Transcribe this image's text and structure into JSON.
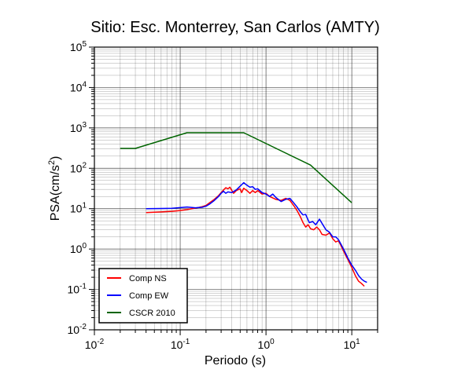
{
  "chart_data": {
    "type": "line",
    "title": "Sitio: Esc. Monterrey, San Carlos (AMTY)",
    "xlabel": "Periodo (s)",
    "ylabel_main": "PSA(cm/s",
    "ylabel_sup": "2",
    "ylabel_close": ")",
    "x_scale": "log",
    "y_scale": "log",
    "xlim": [
      0.01,
      20
    ],
    "ylim": [
      0.01,
      100000
    ],
    "x_ticks": [
      {
        "value": 0.01,
        "base": "10",
        "exp": "-2"
      },
      {
        "value": 0.1,
        "base": "10",
        "exp": "-1"
      },
      {
        "value": 1,
        "base": "10",
        "exp": "0"
      },
      {
        "value": 10,
        "base": "10",
        "exp": "1"
      }
    ],
    "y_ticks": [
      {
        "value": 0.01,
        "base": "10",
        "exp": "-2"
      },
      {
        "value": 0.1,
        "base": "10",
        "exp": "-1"
      },
      {
        "value": 1,
        "base": "10",
        "exp": "0"
      },
      {
        "value": 10,
        "base": "10",
        "exp": "1"
      },
      {
        "value": 100,
        "base": "10",
        "exp": "2"
      },
      {
        "value": 1000,
        "base": "10",
        "exp": "3"
      },
      {
        "value": 10000,
        "base": "10",
        "exp": "4"
      },
      {
        "value": 100000,
        "base": "10",
        "exp": "5"
      }
    ],
    "grid": true,
    "legend_position": "bottom-left",
    "series": [
      {
        "name": "Comp NS",
        "color": "#ff0000",
        "points": [
          [
            0.04,
            8.0
          ],
          [
            0.06,
            8.3
          ],
          [
            0.08,
            8.6
          ],
          [
            0.1,
            9.0
          ],
          [
            0.12,
            9.5
          ],
          [
            0.15,
            10.3
          ],
          [
            0.18,
            11.2
          ],
          [
            0.2,
            12
          ],
          [
            0.22,
            14
          ],
          [
            0.25,
            17
          ],
          [
            0.28,
            21
          ],
          [
            0.3,
            25
          ],
          [
            0.32,
            29
          ],
          [
            0.34,
            33
          ],
          [
            0.36,
            31
          ],
          [
            0.38,
            34
          ],
          [
            0.4,
            28
          ],
          [
            0.42,
            24
          ],
          [
            0.45,
            28
          ],
          [
            0.5,
            31
          ],
          [
            0.52,
            25
          ],
          [
            0.55,
            32
          ],
          [
            0.6,
            28
          ],
          [
            0.65,
            24
          ],
          [
            0.7,
            28
          ],
          [
            0.75,
            25
          ],
          [
            0.8,
            28
          ],
          [
            0.9,
            23
          ],
          [
            1.0,
            24
          ],
          [
            1.1,
            20
          ],
          [
            1.3,
            17
          ],
          [
            1.5,
            16
          ],
          [
            1.7,
            18
          ],
          [
            1.9,
            16
          ],
          [
            2.1,
            12
          ],
          [
            2.3,
            9
          ],
          [
            2.5,
            6.5
          ],
          [
            2.7,
            4.5
          ],
          [
            2.9,
            3.5
          ],
          [
            3.1,
            4
          ],
          [
            3.3,
            3.2
          ],
          [
            3.6,
            3.0
          ],
          [
            3.9,
            3.5
          ],
          [
            4.2,
            3.0
          ],
          [
            4.5,
            2.3
          ],
          [
            5.0,
            2.2
          ],
          [
            5.5,
            2.5
          ],
          [
            6.0,
            1.8
          ],
          [
            6.5,
            1.5
          ],
          [
            7.0,
            1.6
          ],
          [
            7.5,
            1.2
          ],
          [
            8.0,
            0.9
          ],
          [
            9.0,
            0.55
          ],
          [
            10,
            0.35
          ],
          [
            11,
            0.22
          ],
          [
            12,
            0.16
          ],
          [
            13,
            0.14
          ],
          [
            14,
            0.12
          ]
        ]
      },
      {
        "name": "Comp EW",
        "color": "#0000ff",
        "points": [
          [
            0.04,
            10
          ],
          [
            0.06,
            10.1
          ],
          [
            0.08,
            10.2
          ],
          [
            0.1,
            10.6
          ],
          [
            0.12,
            11.0
          ],
          [
            0.15,
            10.5
          ],
          [
            0.18,
            10.8
          ],
          [
            0.2,
            11.5
          ],
          [
            0.22,
            13
          ],
          [
            0.25,
            16
          ],
          [
            0.28,
            20
          ],
          [
            0.3,
            24
          ],
          [
            0.32,
            27
          ],
          [
            0.34,
            24
          ],
          [
            0.36,
            26
          ],
          [
            0.4,
            25
          ],
          [
            0.45,
            29
          ],
          [
            0.5,
            36
          ],
          [
            0.55,
            44
          ],
          [
            0.6,
            38
          ],
          [
            0.65,
            34
          ],
          [
            0.7,
            35
          ],
          [
            0.75,
            30
          ],
          [
            0.8,
            31
          ],
          [
            0.9,
            25
          ],
          [
            1.0,
            23
          ],
          [
            1.1,
            20
          ],
          [
            1.2,
            23
          ],
          [
            1.3,
            19
          ],
          [
            1.5,
            15
          ],
          [
            1.7,
            17
          ],
          [
            1.9,
            18
          ],
          [
            2.1,
            14
          ],
          [
            2.3,
            11
          ],
          [
            2.5,
            8.5
          ],
          [
            2.7,
            7
          ],
          [
            2.9,
            7.2
          ],
          [
            3.2,
            4.5
          ],
          [
            3.5,
            4.8
          ],
          [
            3.8,
            4.0
          ],
          [
            4.2,
            5.5
          ],
          [
            4.6,
            4.0
          ],
          [
            5.0,
            3.0
          ],
          [
            5.5,
            2.6
          ],
          [
            6.0,
            2.0
          ],
          [
            6.5,
            2.0
          ],
          [
            7.0,
            1.7
          ],
          [
            7.5,
            1.3
          ],
          [
            8.0,
            1.0
          ],
          [
            9.0,
            0.6
          ],
          [
            10,
            0.4
          ],
          [
            11,
            0.3
          ],
          [
            12,
            0.22
          ],
          [
            13,
            0.18
          ],
          [
            14,
            0.16
          ],
          [
            15,
            0.15
          ]
        ]
      },
      {
        "name": "CSCR 2010",
        "color": "#006400",
        "points": [
          [
            0.02,
            310
          ],
          [
            0.03,
            310
          ],
          [
            0.12,
            760
          ],
          [
            0.55,
            760
          ],
          [
            3.3,
            120
          ],
          [
            10,
            14
          ]
        ]
      }
    ]
  }
}
